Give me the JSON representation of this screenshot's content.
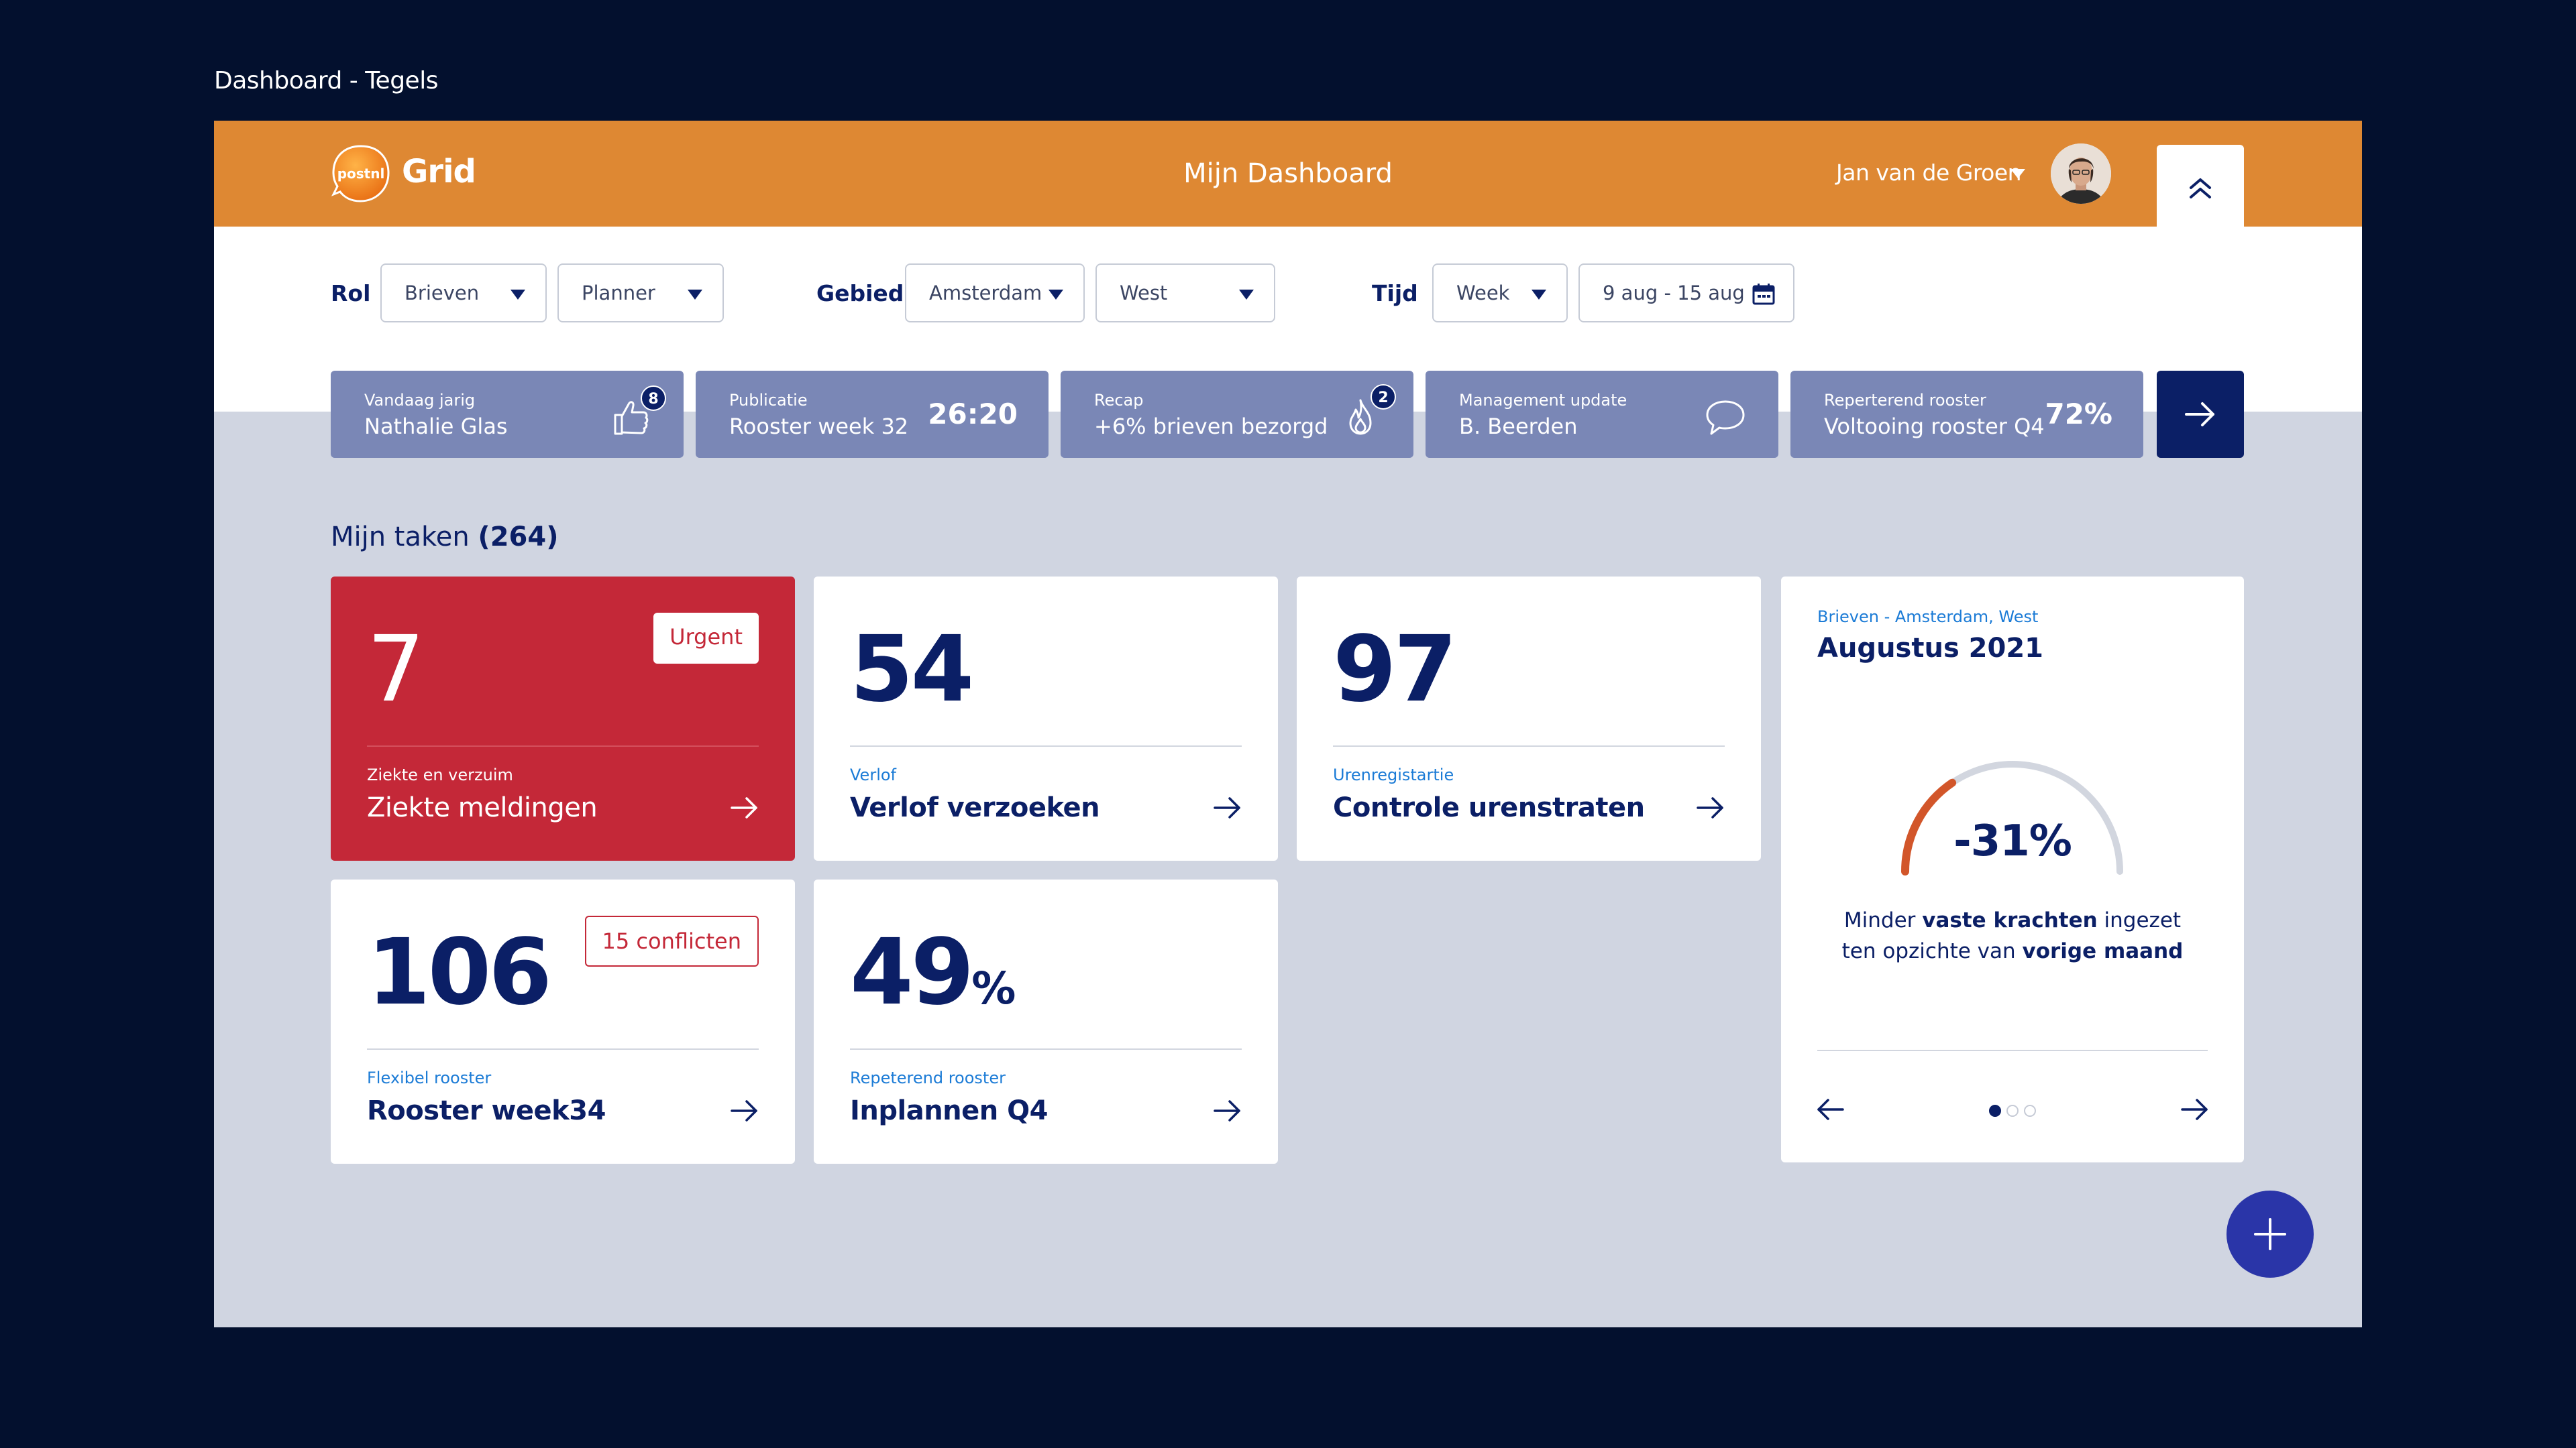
{
  "page_caption": "Dashboard - Tegels",
  "header": {
    "logo_text": "postnl",
    "brand": "Grid",
    "title": "Mijn Dashboard",
    "user_name": "Jan van de Groen"
  },
  "filters": {
    "rol_label": "Rol",
    "rol_values": [
      "Brieven",
      "Planner"
    ],
    "gebied_label": "Gebied",
    "gebied_values": [
      "Amsterdam",
      "West"
    ],
    "tijd_label": "Tijd",
    "tijd_value": "Week",
    "date_range": "9 aug - 15 aug"
  },
  "notifications": [
    {
      "title": "Vandaag jarig",
      "text": "Nathalie Glas",
      "icon": "thumbs-up-icon",
      "badge": "8"
    },
    {
      "title": "Publicatie",
      "text": "Rooster week 32",
      "value": "26:20"
    },
    {
      "title": "Recap",
      "text": "+6%  brieven bezorgd",
      "icon": "flame-icon",
      "badge": "2"
    },
    {
      "title": "Management update",
      "text": "B. Beerden",
      "icon": "chat-bubble-icon"
    },
    {
      "title": "Reperterend rooster",
      "text": "Voltooing rooster Q4",
      "value": "72%"
    }
  ],
  "tasks": {
    "title": "Mijn taken",
    "count": "(264)",
    "tiles": [
      {
        "number": "7",
        "tag": "Urgent",
        "category": "Ziekte en verzuim",
        "title": "Ziekte meldingen"
      },
      {
        "number": "54",
        "category": "Verlof",
        "title": "Verlof verzoeken"
      },
      {
        "number": "97",
        "category": "Urenregistartie",
        "title": "Controle urenstraten"
      },
      {
        "number": "106",
        "tag": "15 conflicten",
        "category": "Flexibel rooster",
        "title": "Rooster week34"
      },
      {
        "number": "49",
        "unit": "%",
        "category": "Repeterend rooster",
        "title": "Inplannen Q4"
      }
    ]
  },
  "gauge": {
    "subtitle": "Brieven - Amsterdam, West",
    "title": "Augustus 2021",
    "value": "-31%",
    "fraction": 0.31,
    "desc_1": "Minder ",
    "desc_bold_1": "vaste krachten",
    "desc_2": " ingezet",
    "desc_3": "ten opzichte van ",
    "desc_bold_2": "vorige maand",
    "page_count": 3,
    "active_page": 1
  },
  "colors": {
    "accent_orange": "#de8833",
    "navy": "#0b1f66",
    "urgent_red": "#c42838",
    "notif_blue": "#7a87b6",
    "gauge_orange": "#d2562a",
    "fab_blue": "#2a35a8"
  }
}
